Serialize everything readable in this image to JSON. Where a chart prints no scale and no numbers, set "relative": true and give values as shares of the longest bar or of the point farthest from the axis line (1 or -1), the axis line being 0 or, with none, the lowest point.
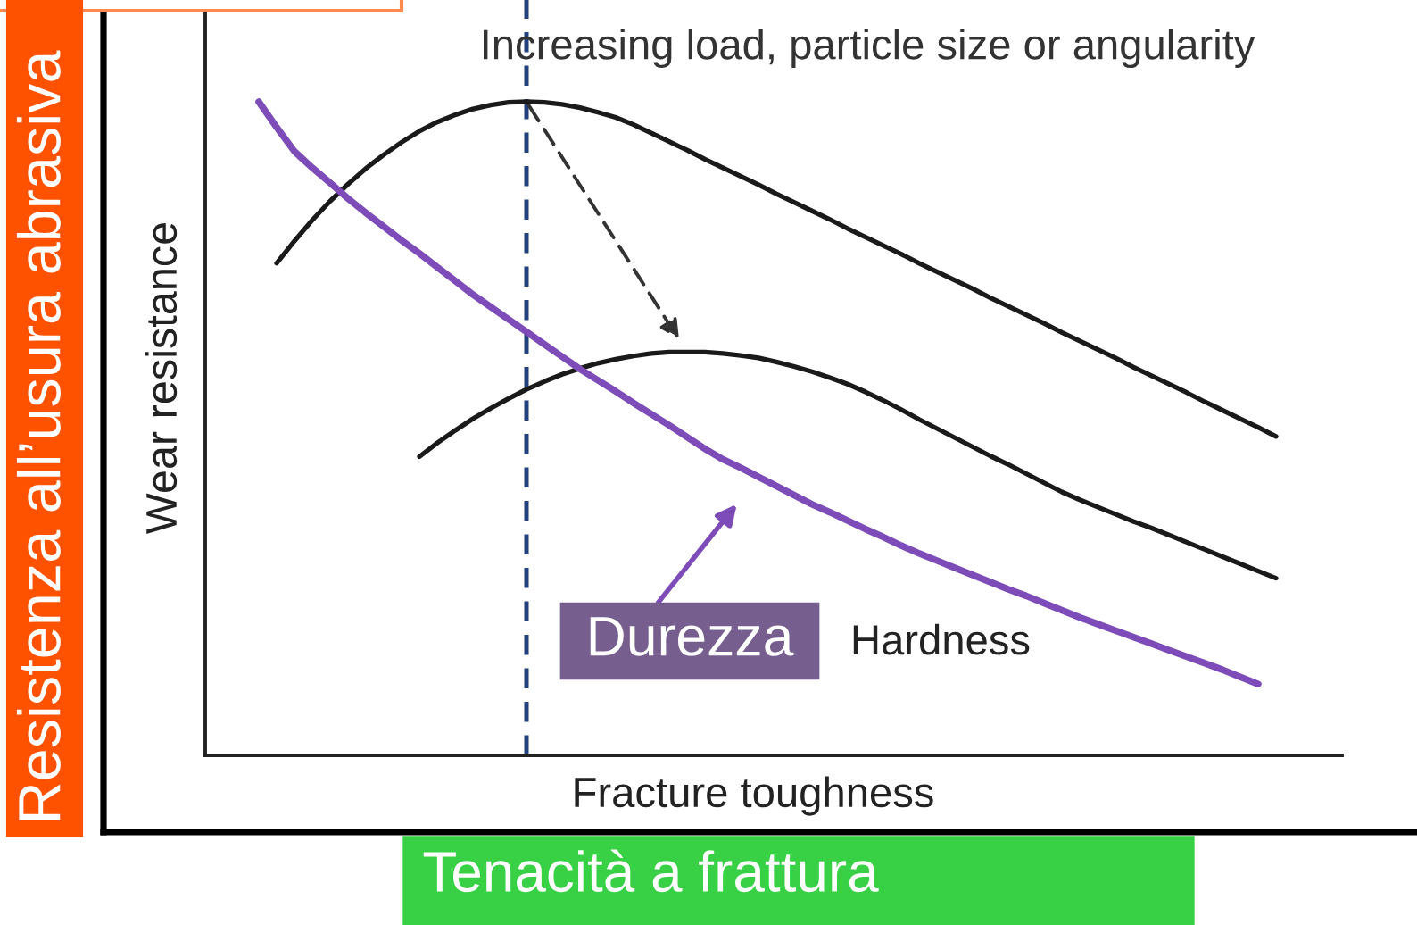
{
  "chart_data": {
    "type": "line",
    "relative": true,
    "xlabel": "Fracture toughness",
    "ylabel": "Wear resistance",
    "categories": [
      null,
      null,
      null,
      null,
      null,
      null,
      null,
      null,
      null,
      null,
      null,
      null,
      null,
      null,
      null,
      null,
      null,
      null,
      null,
      null,
      null,
      null,
      null,
      null,
      null,
      null,
      null,
      null,
      null,
      null,
      null,
      null,
      null,
      null,
      null,
      null,
      null,
      null,
      null,
      null,
      null,
      null,
      null,
      null,
      null,
      null,
      null,
      null,
      null,
      null,
      null,
      null,
      null,
      null,
      null,
      null,
      null,
      null
    ],
    "series": [
      {
        "color": "#1a1a1a",
        "values": [
          null,
          0.753,
          0.787,
          0.819,
          0.848,
          0.874,
          0.898,
          0.919,
          0.938,
          0.955,
          0.969,
          0.98,
          0.989,
          0.995,
          0.999,
          1.0,
          0.999,
          0.996,
          0.991,
          0.984,
          0.976,
          0.965,
          0.952,
          0.939,
          0.926,
          0.912,
          0.899,
          0.886,
          0.873,
          0.859,
          0.846,
          0.833,
          0.82,
          0.806,
          0.793,
          0.78,
          0.767,
          0.753,
          0.74,
          0.727,
          0.714,
          0.7,
          0.687,
          0.674,
          0.661,
          0.647,
          0.634,
          0.621,
          0.608,
          0.594,
          0.581,
          0.568,
          0.555,
          0.541,
          0.528,
          0.515,
          0.502,
          0.488
        ]
      },
      {
        "color": "#1a1a1a",
        "values": [
          null,
          null,
          null,
          null,
          null,
          null,
          null,
          null,
          null,
          0.457,
          0.478,
          0.497,
          0.515,
          0.531,
          0.546,
          0.56,
          0.572,
          0.583,
          0.592,
          0.6,
          0.606,
          0.611,
          0.615,
          0.617,
          0.617,
          0.617,
          0.615,
          0.612,
          0.608,
          0.602,
          0.595,
          0.587,
          0.578,
          0.568,
          0.556,
          0.543,
          0.529,
          0.514,
          0.5,
          0.486,
          0.472,
          0.458,
          0.445,
          0.431,
          0.417,
          0.403,
          0.391,
          0.38,
          0.369,
          0.358,
          0.348,
          0.337,
          0.326,
          0.315,
          0.304,
          0.293,
          0.282,
          0.271
        ]
      },
      {
        "name": "Hardness",
        "color": "#7d4cb8",
        "values": [
          1.0,
          0.961,
          0.924,
          0.899,
          0.876,
          0.852,
          0.83,
          0.809,
          0.788,
          0.768,
          0.747,
          0.726,
          0.705,
          0.686,
          0.667,
          0.648,
          0.629,
          0.61,
          0.591,
          0.574,
          0.557,
          0.539,
          0.522,
          0.505,
          0.487,
          0.469,
          0.453,
          0.44,
          0.426,
          0.412,
          0.398,
          0.384,
          0.372,
          0.359,
          0.346,
          0.334,
          0.321,
          0.309,
          0.298,
          0.287,
          0.276,
          0.265,
          0.254,
          0.244,
          0.233,
          0.222,
          0.211,
          0.201,
          0.191,
          0.181,
          0.171,
          0.161,
          0.151,
          0.141,
          0.131,
          0.12,
          0.109,
          null
        ]
      }
    ],
    "annotations": [
      "Increasing load, particle size or angularity",
      "Durezza",
      "Resistenza all’usura abrasiva",
      "Tenacità a frattura"
    ]
  }
}
